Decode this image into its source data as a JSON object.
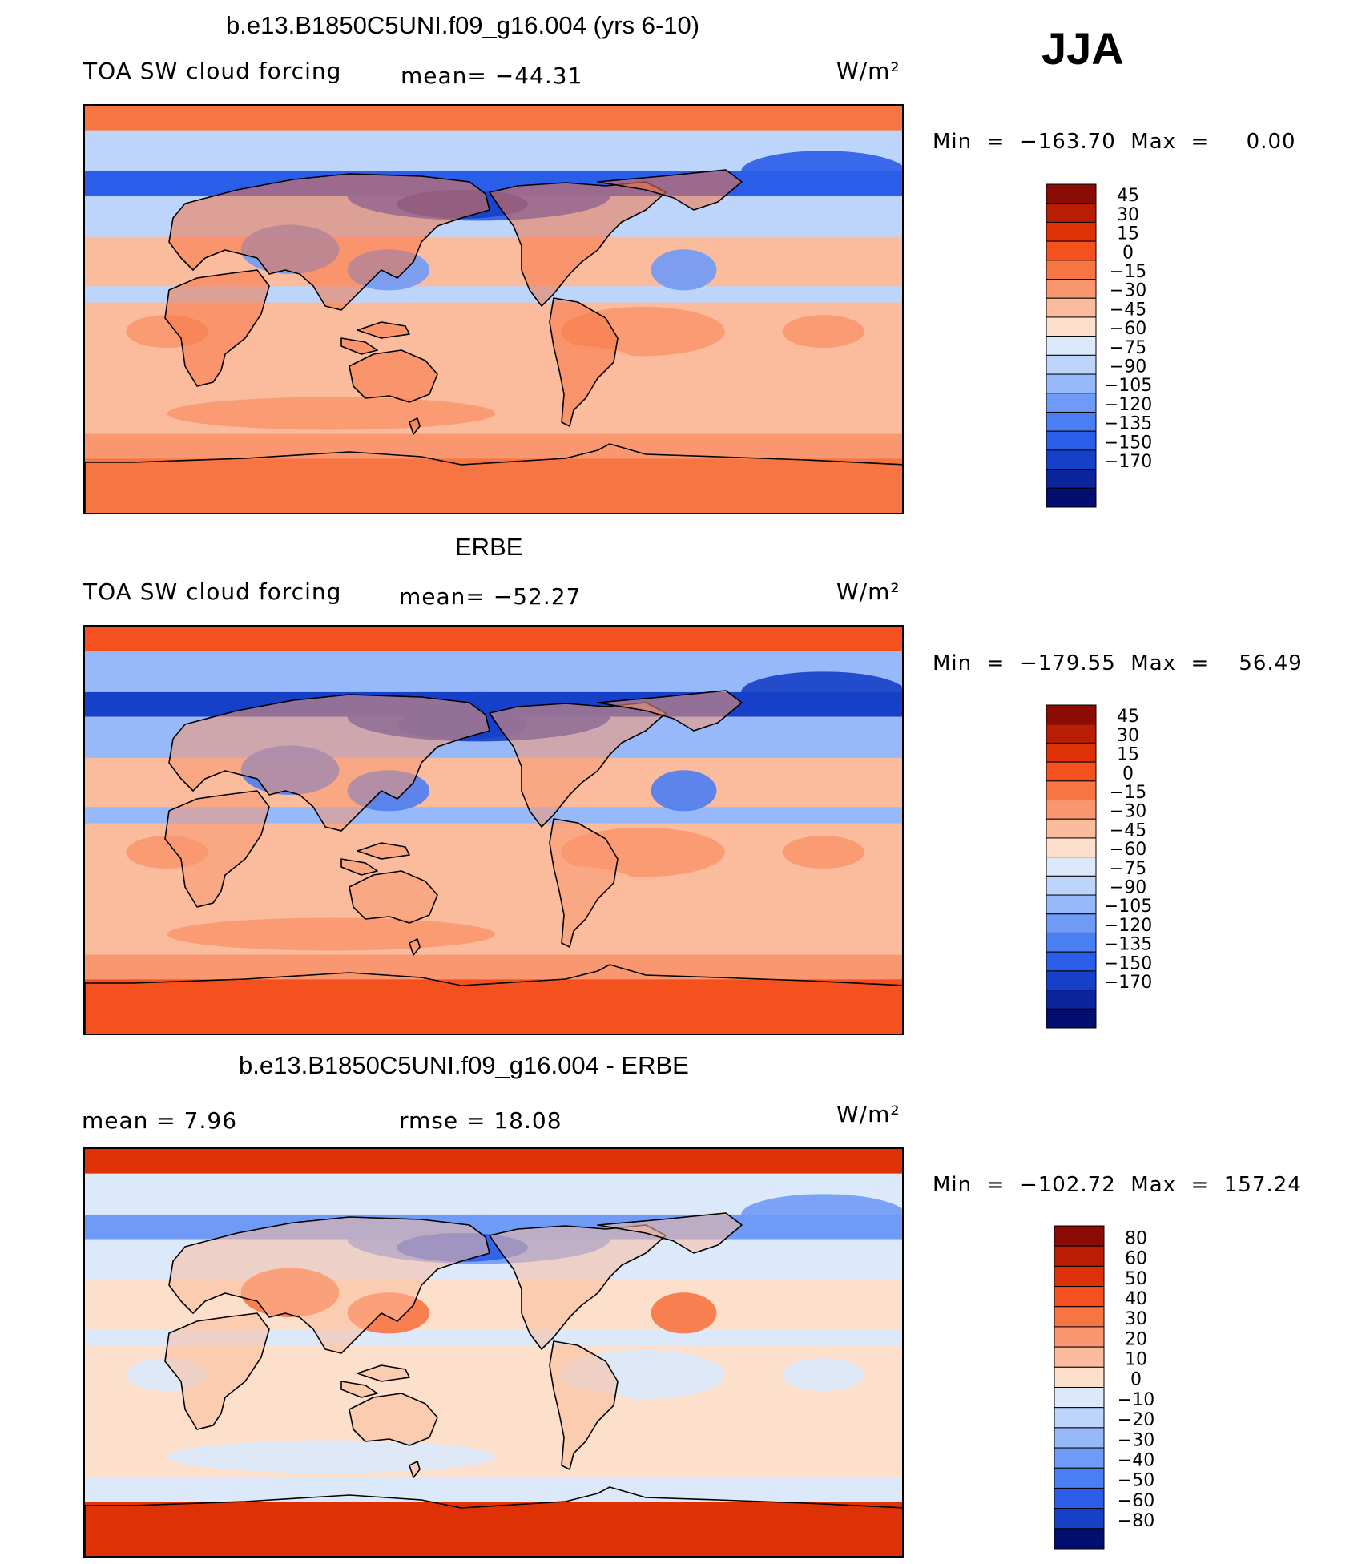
{
  "season": "JJA",
  "units": "W/m²",
  "chart_data": [
    {
      "type": "heatmap",
      "title": "b.e13.B1850C5UNI.f09_g16.004 (yrs 6-10)",
      "variable": "TOA SW cloud forcing",
      "mean_text": "mean=  −44.31",
      "units": "W/m²",
      "min_max_text": "Min  =  −163.70  Max  =     0.00",
      "min": -163.7,
      "max": 0.0,
      "legend": {
        "levels": [
          "45",
          "30",
          "15",
          "0",
          "−15",
          "−30",
          "−45",
          "−60",
          "−75",
          "−90",
          "−105",
          "−120",
          "−135",
          "−150",
          "−170"
        ],
        "colors": [
          "#8b0b05",
          "#b91e05",
          "#de3206",
          "#f5511e",
          "#f77443",
          "#f99870",
          "#fbbb9d",
          "#fde0cb",
          "#dbe9fb",
          "#bdd5fb",
          "#97b9fa",
          "#6f9bf7",
          "#4a7ef3",
          "#2a5de8",
          "#1640c8",
          "#0c249c",
          "#040e70"
        ]
      },
      "field_colors": {
        "ocean": "#fbbb9d",
        "land": "#f77443",
        "stratus": "#f99870",
        "storm": "#2a5de8",
        "cloudy": "#bdd5fb",
        "very_cloudy": "#6f9bf7",
        "polar": "#f77443"
      }
    },
    {
      "type": "heatmap",
      "title": "ERBE",
      "variable": "TOA SW cloud forcing",
      "mean_text": "mean=  −52.27",
      "units": "W/m²",
      "min_max_text": "Min  =  −179.55  Max  =    56.49",
      "min": -179.55,
      "max": 56.49,
      "legend": {
        "levels": [
          "45",
          "30",
          "15",
          "0",
          "−15",
          "−30",
          "−45",
          "−60",
          "−75",
          "−90",
          "−105",
          "−120",
          "−135",
          "−150",
          "−170"
        ],
        "colors": [
          "#8b0b05",
          "#b91e05",
          "#de3206",
          "#f5511e",
          "#f77443",
          "#f99870",
          "#fbbb9d",
          "#fde0cb",
          "#dbe9fb",
          "#bdd5fb",
          "#97b9fa",
          "#6f9bf7",
          "#4a7ef3",
          "#2a5de8",
          "#1640c8",
          "#0c249c",
          "#040e70"
        ]
      },
      "field_colors": {
        "ocean": "#fbbb9d",
        "land": "#f99870",
        "stratus": "#f99870",
        "storm": "#1640c8",
        "cloudy": "#97b9fa",
        "very_cloudy": "#4a7ef3",
        "polar": "#f5511e"
      }
    },
    {
      "type": "heatmap",
      "title": "b.e13.B1850C5UNI.f09_g16.004 - ERBE",
      "variable": "",
      "mean_text": "mean  =     7.96",
      "rmse_text": "rmse  =    18.08",
      "units": "W/m²",
      "min_max_text": "Min  =  −102.72  Max  =  157.24",
      "min": -102.72,
      "max": 157.24,
      "mean": 7.96,
      "rmse": 18.08,
      "legend": {
        "levels": [
          "80",
          "60",
          "50",
          "40",
          "30",
          "20",
          "10",
          "0",
          "−10",
          "−20",
          "−30",
          "−40",
          "−50",
          "−60",
          "−80"
        ],
        "colors": [
          "#8b0b05",
          "#b91e05",
          "#de3206",
          "#f5511e",
          "#f77443",
          "#f99870",
          "#fbbb9d",
          "#fde0cb",
          "#dbe9fb",
          "#bdd5fb",
          "#97b9fa",
          "#6f9bf7",
          "#4a7ef3",
          "#2a5de8",
          "#1640c8",
          "#040e70"
        ]
      },
      "field_colors": {
        "ocean": "#fde0cb",
        "land": "#fbbb9d",
        "stratus": "#dbe9fb",
        "storm": "#6f9bf7",
        "cloudy": "#dbe9fb",
        "very_cloudy": "#f77443",
        "polar": "#de3206"
      }
    }
  ]
}
